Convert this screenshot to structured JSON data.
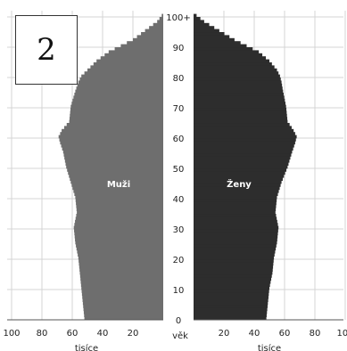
{
  "panel_label": "2",
  "chart_data": {
    "type": "bar",
    "orientation": "horizontal",
    "subtype": "population-pyramid",
    "ylabel": "věk",
    "xlabel_left": "tisíce",
    "xlabel_right": "tisíce",
    "age_ticks": [
      "0",
      "10",
      "20",
      "30",
      "40",
      "50",
      "60",
      "70",
      "80",
      "90",
      "100+"
    ],
    "x_ticks_left": [
      "100",
      "80",
      "60",
      "40",
      "20"
    ],
    "x_ticks_right": [
      "20",
      "40",
      "60",
      "80",
      "100"
    ],
    "xlim": [
      0,
      100
    ],
    "ylim": [
      0,
      100
    ],
    "grid": true,
    "colors": {
      "male": "#6e6e6e",
      "female": "#2d2d2d",
      "grid": "#d4d4d4"
    },
    "series": [
      {
        "name": "Muži",
        "ages": [
          0,
          5,
          10,
          15,
          20,
          25,
          30,
          35,
          40,
          45,
          50,
          55,
          58,
          60,
          62,
          65,
          70,
          75,
          78,
          80,
          82,
          85,
          88,
          90,
          92,
          95,
          98,
          100
        ],
        "values": [
          52,
          53,
          54,
          55,
          56,
          58,
          59,
          57,
          58,
          61,
          64,
          66,
          68,
          69,
          67,
          62,
          61,
          58,
          56,
          54,
          50,
          44,
          36,
          28,
          20,
          12,
          4,
          1
        ]
      },
      {
        "name": "Ženy",
        "ages": [
          0,
          5,
          10,
          15,
          20,
          25,
          30,
          35,
          40,
          45,
          50,
          55,
          58,
          60,
          62,
          65,
          70,
          75,
          78,
          80,
          82,
          85,
          88,
          90,
          92,
          95,
          98,
          100
        ],
        "values": [
          48,
          49,
          50,
          52,
          53,
          55,
          56,
          54,
          55,
          58,
          62,
          65,
          67,
          68,
          66,
          62,
          61,
          59,
          58,
          57,
          55,
          50,
          43,
          35,
          27,
          17,
          7,
          2
        ]
      }
    ]
  }
}
